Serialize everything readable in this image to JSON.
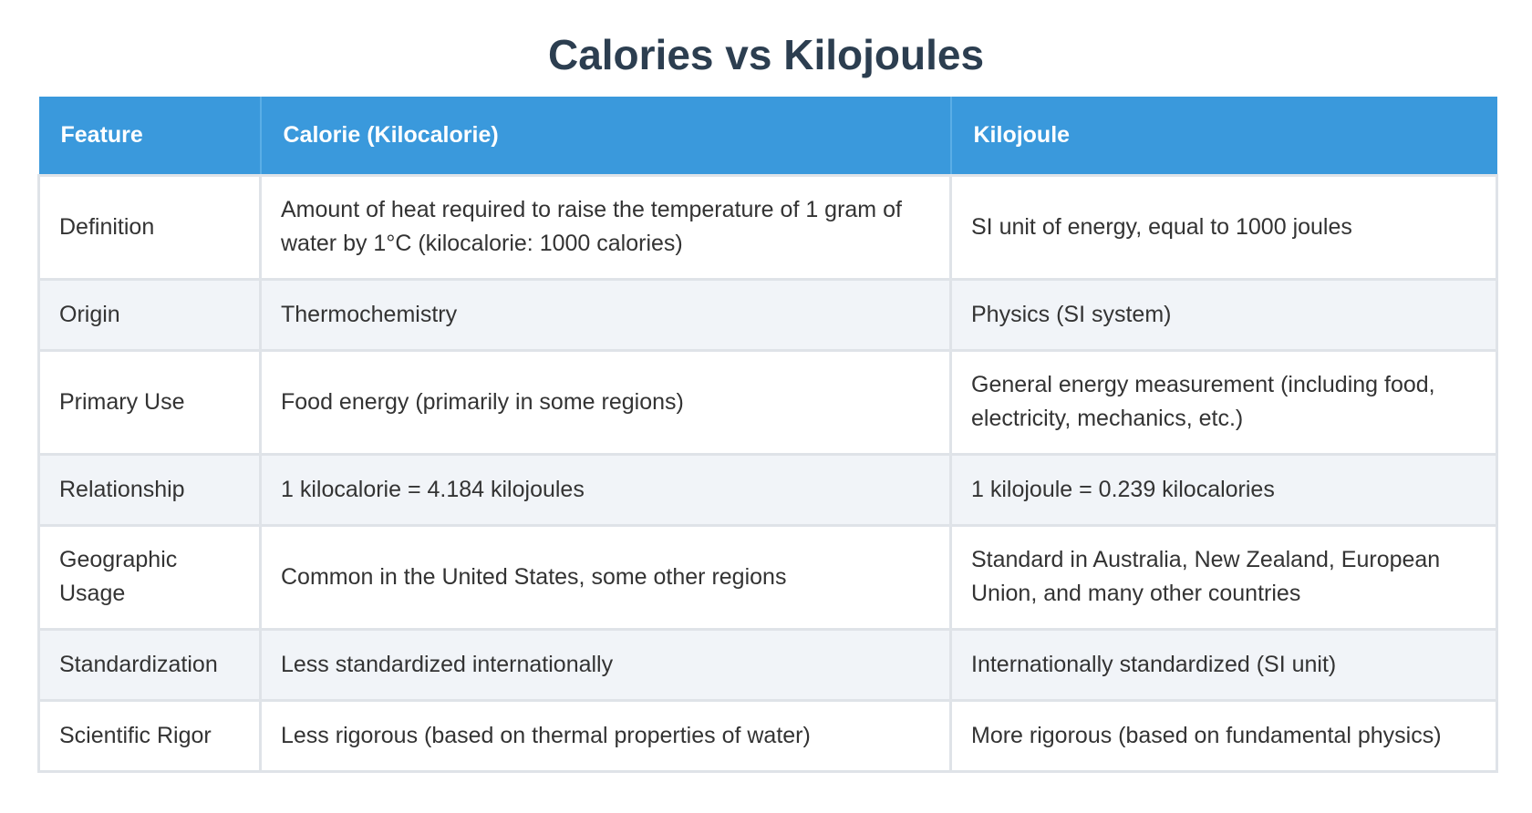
{
  "title": "Calories vs Kilojoules",
  "table": {
    "headers": [
      "Feature",
      "Calorie (Kilocalorie)",
      "Kilojoule"
    ],
    "rows": [
      {
        "feature": "Definition",
        "calorie": "Amount of heat required to raise the temperature of 1 gram of water by 1°C (kilocalorie: 1000 calories)",
        "kilojoule": "SI unit of energy, equal to 1000 joules"
      },
      {
        "feature": "Origin",
        "calorie": "Thermochemistry",
        "kilojoule": "Physics (SI system)"
      },
      {
        "feature": "Primary Use",
        "calorie": "Food energy (primarily in some regions)",
        "kilojoule": "General energy measurement (including food, electricity, mechanics, etc.)"
      },
      {
        "feature": "Relationship",
        "calorie": "1 kilocalorie = 4.184 kilojoules",
        "kilojoule": "1 kilojoule = 0.239 kilocalories"
      },
      {
        "feature": "Geographic Usage",
        "calorie": "Common in the United States, some other regions",
        "kilojoule": "Standard in Australia, New Zealand, European Union, and many other countries"
      },
      {
        "feature": "Standardization",
        "calorie": "Less standardized internationally",
        "kilojoule": "Internationally standardized (SI unit)"
      },
      {
        "feature": "Scientific Rigor",
        "calorie": "Less rigorous (based on thermal properties of water)",
        "kilojoule": "More rigorous (based on fundamental physics)"
      }
    ]
  }
}
